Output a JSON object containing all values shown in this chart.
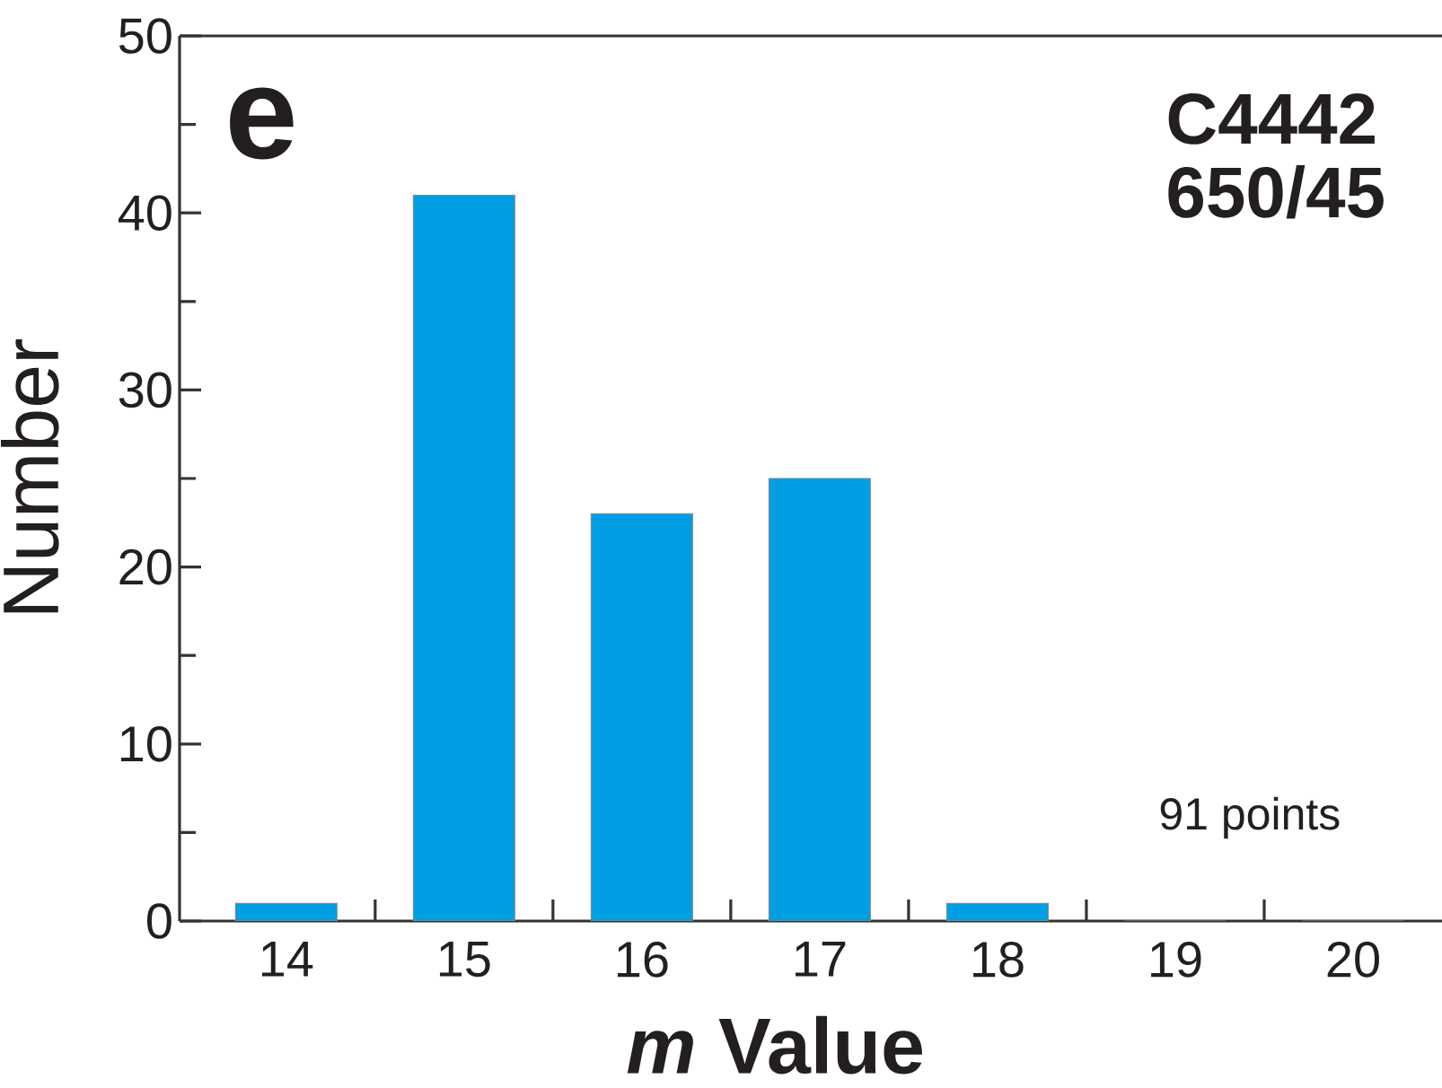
{
  "chart_data": {
    "type": "bar",
    "categories": [
      "14",
      "15",
      "16",
      "17",
      "18",
      "19",
      "20"
    ],
    "values": [
      1,
      41,
      23,
      25,
      1,
      0,
      0
    ],
    "color": "#009fe3",
    "xlabel": "*m* Value",
    "ylabel": "Number",
    "ylim": [
      0,
      50
    ],
    "yticks": [
      0,
      {
        "value": 5,
        "label": null
      },
      10,
      {
        "value": 15,
        "label": null
      },
      20,
      {
        "value": 25,
        "label": null
      },
      30,
      {
        "value": 35,
        "label": null
      },
      40,
      {
        "value": 45,
        "label": null
      },
      50
    ],
    "annotations": [
      "e",
      "C4442",
      "650/45",
      "91 points"
    ]
  }
}
